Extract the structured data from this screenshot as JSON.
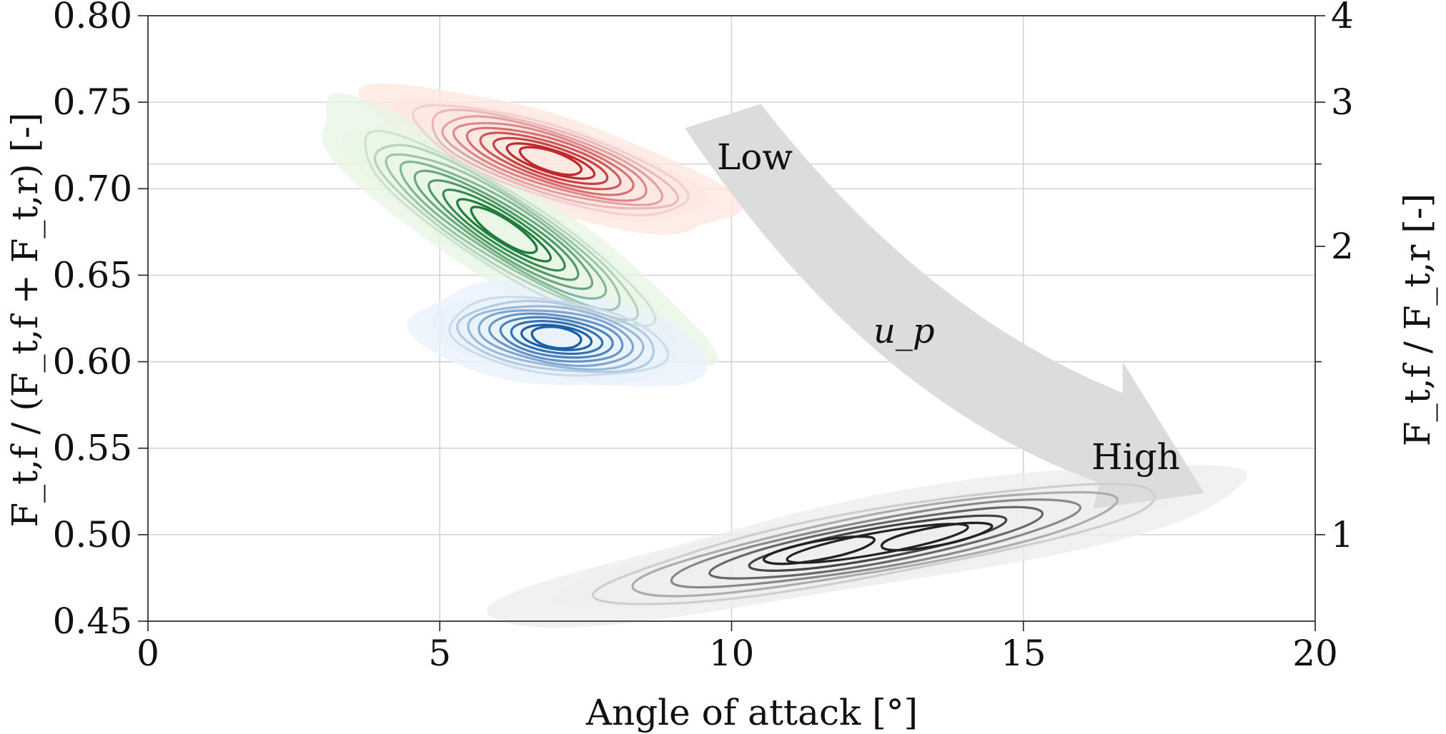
{
  "chart_data": {
    "type": "contour",
    "xlabel": "Angle of attack [°]",
    "ylabel": "F_t,f / (F_t,f + F_t,r) [-]",
    "ylabel_right": "F_t,f / F_t,r [-]",
    "xlim": [
      0,
      20
    ],
    "ylim": [
      0.45,
      0.8
    ],
    "x_ticks": [
      0,
      5,
      10,
      15,
      20
    ],
    "y_ticks": [
      0.45,
      0.5,
      0.55,
      0.6,
      0.65,
      0.7,
      0.75,
      0.8
    ],
    "x_tick_labels": [
      "0",
      "5",
      "10",
      "15",
      "20"
    ],
    "y_tick_labels": [
      "0.45",
      "0.50",
      "0.55",
      "0.60",
      "0.65",
      "0.70",
      "0.75",
      "0.80"
    ],
    "right_ticks": [
      1,
      2,
      3,
      4
    ],
    "right_tick_labels": [
      "1",
      "2",
      "3",
      "4"
    ],
    "grid": true,
    "series": [
      {
        "color": "#c0282d",
        "fill": "#fde6de",
        "peaks": [
          {
            "x": 6.9,
            "y": 0.716
          }
        ],
        "spread_x": 1.5,
        "spread_y": 0.011,
        "tilt": -0.01
      },
      {
        "color": "#1e7d3c",
        "fill": "#e7f5e4",
        "peaks": [
          {
            "x": 6.1,
            "y": 0.676
          }
        ],
        "spread_x": 1.6,
        "spread_y": 0.013,
        "tilt": -0.02
      },
      {
        "color": "#1a5fa8",
        "fill": "#e8f1fb",
        "peaks": [
          {
            "x": 7.0,
            "y": 0.614
          }
        ],
        "spread_x": 1.2,
        "spread_y": 0.011,
        "tilt": -0.004
      },
      {
        "color": "#222222",
        "fill": "#ececec",
        "peaks": [
          {
            "x": 11.5,
            "y": 0.491
          },
          {
            "x": 13.5,
            "y": 0.499
          }
        ],
        "spread_x": 2.1,
        "spread_y": 0.01,
        "tilt": 0.006
      }
    ],
    "annotations": {
      "arrow_label": "u_p",
      "start_label": "Low",
      "end_label": "High"
    }
  },
  "colors": {
    "arrow": "#dcdcdc"
  }
}
